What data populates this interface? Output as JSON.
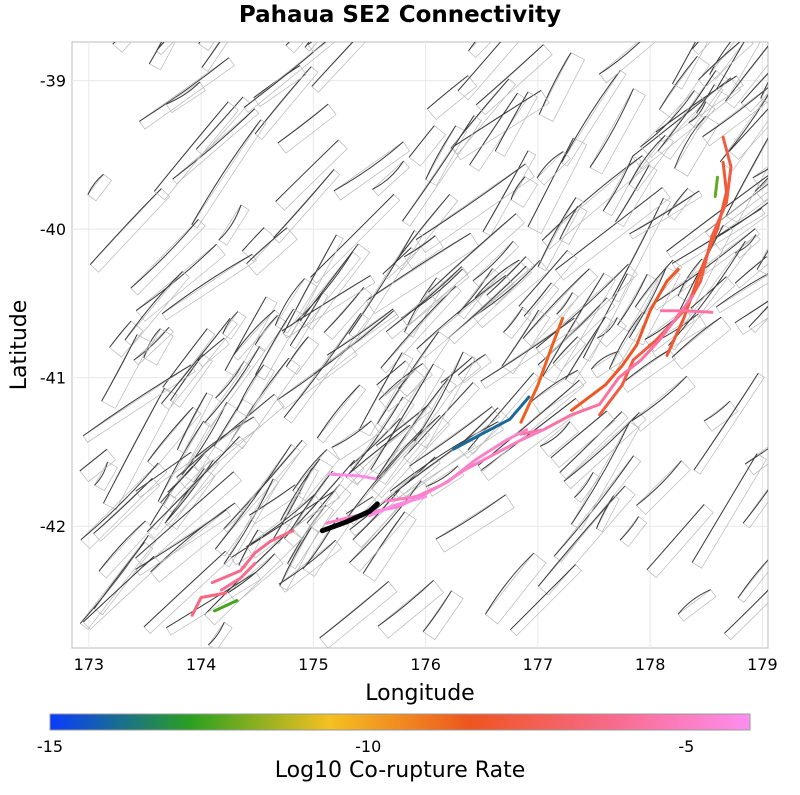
{
  "chart_data": {
    "type": "map",
    "title": "Pahaua SE2 Connectivity",
    "xlabel": "Longitude",
    "ylabel": "Latitude",
    "xlim": [
      172.85,
      179.05
    ],
    "ylim": [
      -42.82,
      -38.74
    ],
    "xticks": [
      173,
      174,
      175,
      176,
      177,
      178,
      179
    ],
    "yticks": [
      -39,
      -40,
      -41,
      -42
    ],
    "grid": true,
    "colorbar": {
      "label": "Log10 Co-rupture Rate",
      "range": [
        -15,
        -4
      ],
      "ticks": [
        -15,
        -10,
        -5
      ],
      "stops": [
        "#0a3cff",
        "#2aa020",
        "#f5c021",
        "#ee5520",
        "#f86a8a",
        "#ff8ef0"
      ]
    },
    "highlighted_faults": [
      {
        "value": -14.0,
        "points": [
          [
            176.25,
            -41.48
          ],
          [
            176.5,
            -41.38
          ],
          [
            176.75,
            -41.28
          ],
          [
            176.92,
            -41.13
          ]
        ]
      },
      {
        "value": -12.5,
        "points": [
          [
            174.12,
            -42.57
          ],
          [
            174.32,
            -42.5
          ]
        ]
      },
      {
        "value": -12.2,
        "points": [
          [
            178.58,
            -39.78
          ],
          [
            178.6,
            -39.65
          ]
        ]
      },
      {
        "value": -8.6,
        "points": [
          [
            176.85,
            -41.3
          ],
          [
            177.0,
            -41.05
          ],
          [
            177.12,
            -40.8
          ],
          [
            177.22,
            -40.6
          ]
        ]
      },
      {
        "value": -8.3,
        "points": [
          [
            177.3,
            -41.22
          ],
          [
            177.6,
            -41.05
          ],
          [
            177.75,
            -40.92
          ],
          [
            177.88,
            -40.78
          ],
          [
            178.0,
            -40.55
          ],
          [
            178.15,
            -40.35
          ],
          [
            178.25,
            -40.27
          ]
        ]
      },
      {
        "value": -8.0,
        "points": [
          [
            178.15,
            -40.85
          ],
          [
            178.3,
            -40.6
          ],
          [
            178.45,
            -40.28
          ],
          [
            178.6,
            -40.0
          ],
          [
            178.68,
            -39.75
          ],
          [
            178.65,
            -39.55
          ]
        ]
      },
      {
        "value": -7.7,
        "points": [
          [
            177.55,
            -41.25
          ],
          [
            177.75,
            -41.05
          ],
          [
            177.85,
            -40.88
          ],
          [
            178.05,
            -40.75
          ],
          [
            178.3,
            -40.55
          ],
          [
            178.45,
            -40.35
          ],
          [
            178.55,
            -40.05
          ],
          [
            178.68,
            -39.82
          ],
          [
            178.72,
            -39.58
          ],
          [
            178.65,
            -39.38
          ]
        ]
      },
      {
        "value": -6.4,
        "points": [
          [
            173.92,
            -42.6
          ],
          [
            174.0,
            -42.48
          ],
          [
            174.22,
            -42.45
          ]
        ]
      },
      {
        "value": -6.2,
        "points": [
          [
            174.1,
            -42.38
          ],
          [
            174.35,
            -42.3
          ],
          [
            174.48,
            -42.18
          ],
          [
            174.62,
            -42.1
          ],
          [
            174.82,
            -42.03
          ]
        ]
      },
      {
        "value": -6.0,
        "points": [
          [
            174.18,
            -42.43
          ],
          [
            174.35,
            -42.35
          ],
          [
            174.48,
            -42.25
          ]
        ]
      },
      {
        "value": -5.7,
        "points": [
          [
            176.85,
            -41.38
          ],
          [
            177.05,
            -41.35
          ],
          [
            177.3,
            -41.25
          ],
          [
            177.55,
            -41.18
          ],
          [
            177.72,
            -41.0
          ],
          [
            177.92,
            -40.88
          ],
          [
            178.08,
            -40.75
          ],
          [
            178.28,
            -40.55
          ],
          [
            178.38,
            -40.45
          ]
        ]
      },
      {
        "value": -5.6,
        "points": [
          [
            178.1,
            -40.55
          ],
          [
            178.3,
            -40.55
          ],
          [
            178.55,
            -40.56
          ]
        ]
      },
      {
        "value": -5.0,
        "points": [
          [
            175.65,
            -41.83
          ],
          [
            175.92,
            -41.8
          ],
          [
            176.15,
            -41.72
          ],
          [
            176.35,
            -41.62
          ],
          [
            176.6,
            -41.52
          ],
          [
            176.85,
            -41.42
          ],
          [
            177.05,
            -41.35
          ]
        ]
      },
      {
        "value": -4.8,
        "points": [
          [
            175.12,
            -41.98
          ],
          [
            175.32,
            -41.94
          ],
          [
            175.55,
            -41.9
          ],
          [
            175.75,
            -41.87
          ],
          [
            175.95,
            -41.8
          ],
          [
            176.2,
            -41.7
          ],
          [
            176.45,
            -41.55
          ],
          [
            176.72,
            -41.42
          ],
          [
            176.9,
            -41.35
          ]
        ]
      },
      {
        "value": -4.3,
        "points": [
          [
            175.5,
            -41.93
          ],
          [
            175.72,
            -41.86
          ],
          [
            176.0,
            -41.8
          ]
        ]
      },
      {
        "value": -4.2,
        "points": [
          [
            175.15,
            -41.65
          ],
          [
            175.4,
            -41.66
          ],
          [
            175.55,
            -41.68
          ]
        ]
      }
    ],
    "source_fault": {
      "color": "#000000",
      "points": [
        [
          175.08,
          -42.03
        ],
        [
          175.3,
          -41.97
        ],
        [
          175.5,
          -41.9
        ],
        [
          175.57,
          -41.85
        ]
      ]
    }
  }
}
